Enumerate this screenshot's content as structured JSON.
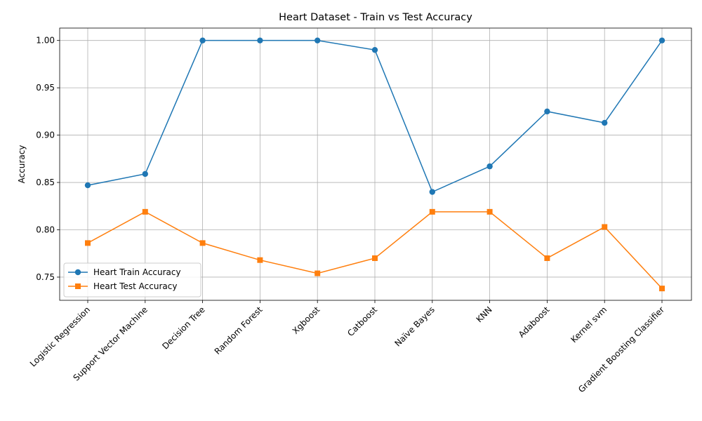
{
  "chart_data": {
    "type": "line",
    "title": "Heart Dataset - Train vs Test Accuracy",
    "xlabel": "",
    "ylabel": "Accuracy",
    "categories": [
      "Logistic Regression",
      "Support Vector Machine",
      "Decision Tree",
      "Random Forest",
      "Xgboost",
      "Catboost",
      "Naïve Bayes",
      "KNN",
      "Adaboost",
      "Kernel svm",
      "Gradient Boosting Classifier"
    ],
    "series": [
      {
        "name": "Heart Train Accuracy",
        "color": "#1f77b4",
        "marker": "circle",
        "values": [
          0.847,
          0.859,
          1.0,
          1.0,
          1.0,
          0.99,
          0.84,
          0.867,
          0.925,
          0.913,
          1.0
        ]
      },
      {
        "name": "Heart Test Accuracy",
        "color": "#ff7f0e",
        "marker": "square",
        "values": [
          0.786,
          0.819,
          0.786,
          0.768,
          0.754,
          0.77,
          0.819,
          0.819,
          0.77,
          0.803,
          0.738
        ]
      }
    ],
    "ylim": [
      0.7255,
      1.0131
    ],
    "yticks": [
      "0.75",
      "0.80",
      "0.85",
      "0.90",
      "0.95",
      "1.00"
    ],
    "grid": true,
    "legend_position": "lower-left"
  }
}
